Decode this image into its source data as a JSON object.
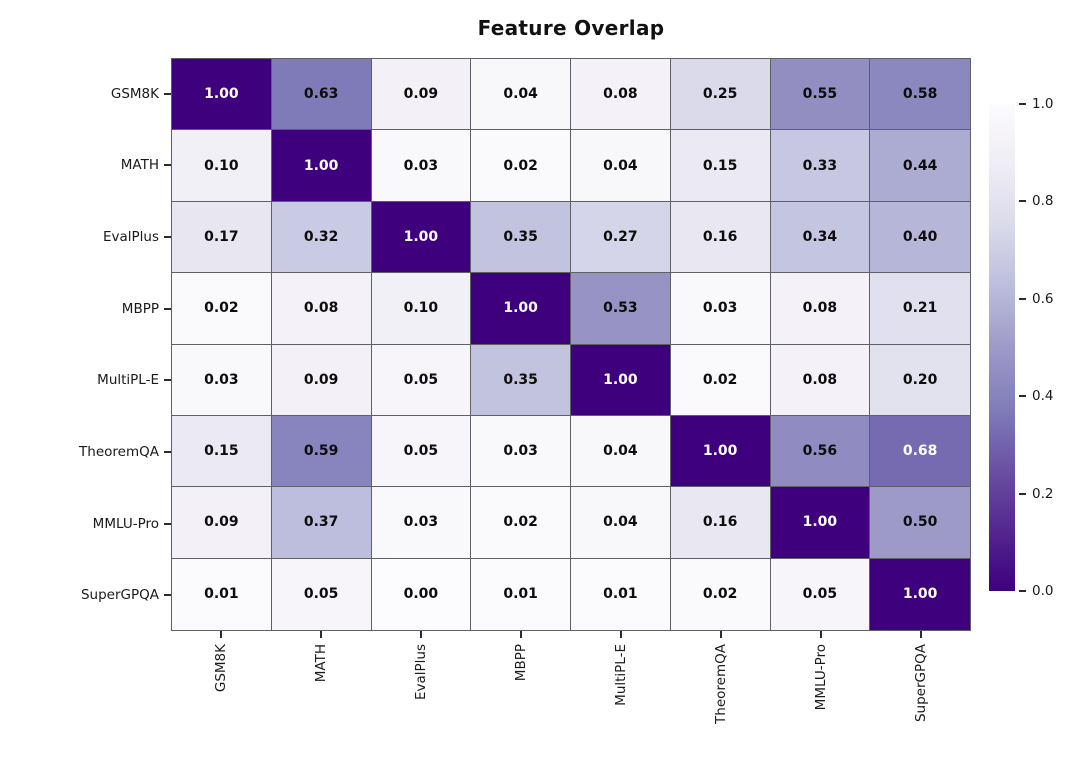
{
  "title": "Feature Overlap",
  "chart_data": {
    "type": "heatmap",
    "title": "Feature Overlap",
    "row_labels": [
      "GSM8K",
      "MATH",
      "EvalPlus",
      "MBPP",
      "MultiPL-E",
      "TheoremQA",
      "MMLU-Pro",
      "SuperGPQA"
    ],
    "col_labels": [
      "GSM8K",
      "MATH",
      "EvalPlus",
      "MBPP",
      "MultiPL-E",
      "TheoremQA",
      "MMLU-Pro",
      "SuperGPQA"
    ],
    "matrix": [
      [
        1.0,
        0.63,
        0.09,
        0.04,
        0.08,
        0.25,
        0.55,
        0.58
      ],
      [
        0.1,
        1.0,
        0.03,
        0.02,
        0.04,
        0.15,
        0.33,
        0.44
      ],
      [
        0.17,
        0.32,
        1.0,
        0.35,
        0.27,
        0.16,
        0.34,
        0.4
      ],
      [
        0.02,
        0.08,
        0.1,
        1.0,
        0.53,
        0.03,
        0.08,
        0.21
      ],
      [
        0.03,
        0.09,
        0.05,
        0.35,
        1.0,
        0.02,
        0.08,
        0.2
      ],
      [
        0.15,
        0.59,
        0.05,
        0.03,
        0.04,
        1.0,
        0.56,
        0.68
      ],
      [
        0.09,
        0.37,
        0.03,
        0.02,
        0.04,
        0.16,
        1.0,
        0.5
      ],
      [
        0.01,
        0.05,
        0.0,
        0.01,
        0.01,
        0.02,
        0.05,
        1.0
      ]
    ],
    "value_decimals": 2,
    "vmin": 0.0,
    "vmax": 1.0,
    "colormap_name": "Purples",
    "colormap_anchors": [
      "#fcfbfd",
      "#efedf5",
      "#dadaeb",
      "#bcbddc",
      "#9e9ac8",
      "#807dba",
      "#6a51a3",
      "#54278f",
      "#3f007d"
    ],
    "colorbar_ticks": [
      "1.0",
      "0.8",
      "0.6",
      "0.4",
      "0.2",
      "0.0"
    ],
    "colorbar_position": "right",
    "white_text_threshold": 0.65,
    "annot_color_dark": "#0d0d0d",
    "annot_color_light": "#ffffff",
    "cell_border_color": "#5f5f66",
    "grid_on": true
  }
}
